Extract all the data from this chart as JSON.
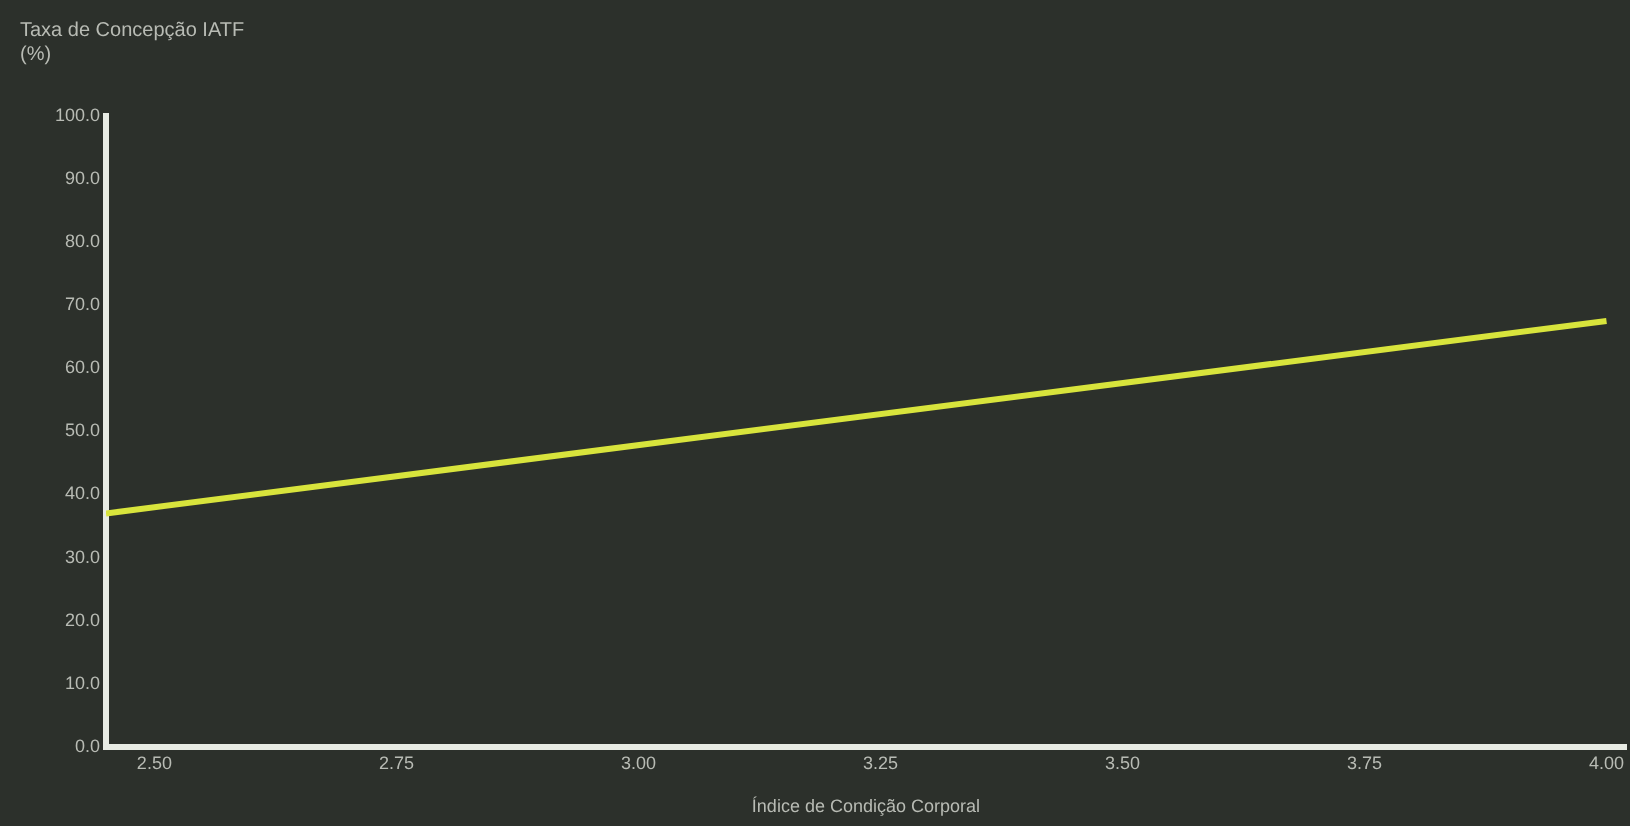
{
  "chart_data": {
    "type": "line",
    "xlabel": "Índice de Condição Corporal",
    "ylabel": "Taxa de Concepção IATF (%)",
    "x": [
      2.45,
      4.0
    ],
    "series": [
      {
        "color": "#d8e43c",
        "values": [
          37.0,
          67.5
        ]
      }
    ],
    "xlim": [
      2.45,
      4.02
    ],
    "xticks": [
      {
        "value": 2.5,
        "label": "2.50"
      },
      {
        "value": 2.75,
        "label": "2.75"
      },
      {
        "value": 3.0,
        "label": "3.00"
      },
      {
        "value": 3.25,
        "label": "3.25"
      },
      {
        "value": 3.5,
        "label": "3.50"
      },
      {
        "value": 3.75,
        "label": "3.75"
      },
      {
        "value": 4.0,
        "label": "4.00"
      }
    ],
    "ylim": [
      0,
      100
    ],
    "yticks": [
      {
        "value": 0,
        "label": "0.0"
      },
      {
        "value": 10,
        "label": "10.0"
      },
      {
        "value": 20,
        "label": "20.0"
      },
      {
        "value": 30,
        "label": "30.0"
      },
      {
        "value": 40,
        "label": "40.0"
      },
      {
        "value": 50,
        "label": "50.0"
      },
      {
        "value": 60,
        "label": "60.0"
      },
      {
        "value": 70,
        "label": "70.0"
      },
      {
        "value": 80,
        "label": "80.0"
      },
      {
        "value": 90,
        "label": "90.0"
      },
      {
        "value": 100,
        "label": "100.0"
      }
    ],
    "grid": false,
    "legend": false,
    "marker": "none",
    "line_style": "solid"
  }
}
